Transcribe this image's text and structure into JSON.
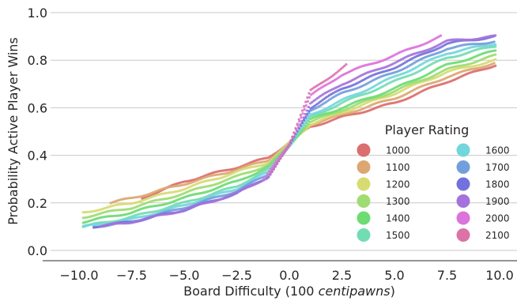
{
  "chart_data": {
    "type": "scatter",
    "xlabel_prefix": "Board Difficulty (100 ",
    "xlabel_italic": "centipawns",
    "xlabel_suffix": ")",
    "ylabel": "Probability Active Player Wins",
    "xlim": [
      -11,
      11
    ],
    "ylim": [
      -0.05,
      1.0
    ],
    "x_ticks": [
      -10.0,
      -7.5,
      -5.0,
      -2.5,
      0.0,
      2.5,
      5.0,
      7.5,
      10.0
    ],
    "x_tick_labels": [
      "−10.0",
      "−7.5",
      "−5.0",
      "−2.5",
      "0.0",
      "2.5",
      "5.0",
      "7.5",
      "10.0"
    ],
    "y_ticks": [
      0.0,
      0.2,
      0.4,
      0.6,
      0.8,
      1.0
    ],
    "y_tick_labels": [
      "0.0",
      "0.2",
      "0.4",
      "0.6",
      "0.8",
      "1.0"
    ],
    "grid": "horizontal",
    "legend": {
      "title": "Player Rating",
      "placement": "lower-right",
      "columns": 2
    },
    "series": [
      {
        "name": "1000",
        "color": "#db6e6e",
        "x_range": [
          -7.0,
          9.8
        ],
        "points": [
          [
            -7,
            0.22
          ],
          [
            -5,
            0.29
          ],
          [
            -2.5,
            0.35
          ],
          [
            -1,
            0.39
          ],
          [
            0,
            0.455
          ],
          [
            1,
            0.52
          ],
          [
            2.5,
            0.56
          ],
          [
            5,
            0.62
          ],
          [
            7.5,
            0.71
          ],
          [
            9.8,
            0.78
          ]
        ]
      },
      {
        "name": "1100",
        "color": "#dca771",
        "x_range": [
          -8.5,
          9.8
        ],
        "points": [
          [
            -8.5,
            0.2
          ],
          [
            -7.5,
            0.22
          ],
          [
            -5,
            0.28
          ],
          [
            -2.5,
            0.34
          ],
          [
            -1,
            0.38
          ],
          [
            0,
            0.45
          ],
          [
            1,
            0.53
          ],
          [
            2.5,
            0.57
          ],
          [
            5,
            0.64
          ],
          [
            7.5,
            0.73
          ],
          [
            9.8,
            0.79
          ]
        ]
      },
      {
        "name": "1200",
        "color": "#d6dc72",
        "x_range": [
          -9.8,
          9.8
        ],
        "points": [
          [
            -9.8,
            0.16
          ],
          [
            -7.5,
            0.2
          ],
          [
            -5,
            0.26
          ],
          [
            -2.5,
            0.33
          ],
          [
            -1,
            0.37
          ],
          [
            0,
            0.45
          ],
          [
            1,
            0.53
          ],
          [
            2.5,
            0.58
          ],
          [
            5,
            0.66
          ],
          [
            7.5,
            0.75
          ],
          [
            9.8,
            0.8
          ]
        ]
      },
      {
        "name": "1300",
        "color": "#9fdc72",
        "x_range": [
          -9.8,
          9.8
        ],
        "points": [
          [
            -9.8,
            0.14
          ],
          [
            -7.5,
            0.18
          ],
          [
            -5,
            0.24
          ],
          [
            -2.5,
            0.31
          ],
          [
            -1,
            0.36
          ],
          [
            0,
            0.445
          ],
          [
            1,
            0.54
          ],
          [
            2.5,
            0.59
          ],
          [
            5,
            0.67
          ],
          [
            7.5,
            0.76
          ],
          [
            9.8,
            0.82
          ]
        ]
      },
      {
        "name": "1400",
        "color": "#6ddc72",
        "x_range": [
          -9.8,
          9.8
        ],
        "points": [
          [
            -9.8,
            0.12
          ],
          [
            -7.5,
            0.16
          ],
          [
            -5,
            0.22
          ],
          [
            -2.5,
            0.29
          ],
          [
            -1,
            0.35
          ],
          [
            0,
            0.44
          ],
          [
            1,
            0.55
          ],
          [
            2.5,
            0.6
          ],
          [
            5,
            0.68
          ],
          [
            7.5,
            0.78
          ],
          [
            9.8,
            0.84
          ]
        ]
      },
      {
        "name": "1500",
        "color": "#72dcb3",
        "x_range": [
          -9.8,
          9.8
        ],
        "points": [
          [
            -9.8,
            0.1
          ],
          [
            -7.5,
            0.14
          ],
          [
            -5,
            0.2
          ],
          [
            -2.5,
            0.27
          ],
          [
            -1,
            0.34
          ],
          [
            0,
            0.44
          ],
          [
            1,
            0.56
          ],
          [
            2.5,
            0.62
          ],
          [
            5,
            0.71
          ],
          [
            7.5,
            0.81
          ],
          [
            9.8,
            0.86
          ]
        ]
      },
      {
        "name": "1600",
        "color": "#72d6dc",
        "x_range": [
          -9.8,
          9.8
        ],
        "points": [
          [
            -9.8,
            0.1
          ],
          [
            -7.5,
            0.13
          ],
          [
            -5,
            0.19
          ],
          [
            -2.5,
            0.26
          ],
          [
            -1,
            0.33
          ],
          [
            0,
            0.44
          ],
          [
            1,
            0.57
          ],
          [
            2.5,
            0.63
          ],
          [
            5,
            0.73
          ],
          [
            7.5,
            0.83
          ],
          [
            9.8,
            0.87
          ]
        ]
      },
      {
        "name": "1700",
        "color": "#729fdc",
        "x_range": [
          -9.3,
          9.8
        ],
        "points": [
          [
            -9.3,
            0.1
          ],
          [
            -7.5,
            0.12
          ],
          [
            -5,
            0.18
          ],
          [
            -2.5,
            0.25
          ],
          [
            -1,
            0.32
          ],
          [
            0,
            0.44
          ],
          [
            1,
            0.59
          ],
          [
            2.5,
            0.66
          ],
          [
            5,
            0.75
          ],
          [
            7.5,
            0.85
          ],
          [
            9.8,
            0.88
          ]
        ]
      },
      {
        "name": "1800",
        "color": "#7272dc",
        "x_range": [
          -9.3,
          9.8
        ],
        "points": [
          [
            -9.3,
            0.1
          ],
          [
            -7.5,
            0.12
          ],
          [
            -5,
            0.17
          ],
          [
            -2.5,
            0.24
          ],
          [
            -1,
            0.31
          ],
          [
            0,
            0.44
          ],
          [
            1,
            0.6
          ],
          [
            2.5,
            0.68
          ],
          [
            5,
            0.77
          ],
          [
            7.5,
            0.87
          ],
          [
            9.8,
            0.9
          ]
        ]
      },
      {
        "name": "1900",
        "color": "#a572dc",
        "x_range": [
          -9.0,
          9.8
        ],
        "points": [
          [
            -9,
            0.1
          ],
          [
            -7.5,
            0.12
          ],
          [
            -5,
            0.17
          ],
          [
            -2.5,
            0.24
          ],
          [
            -1,
            0.31
          ],
          [
            0,
            0.44
          ],
          [
            1,
            0.62
          ],
          [
            2.5,
            0.7
          ],
          [
            5,
            0.79
          ],
          [
            7.5,
            0.88
          ],
          [
            9.8,
            0.9
          ]
        ]
      },
      {
        "name": "2000",
        "color": "#dc72dc",
        "x_range": [
          -1.2,
          7.2
        ],
        "points": [
          [
            -1.2,
            0.3
          ],
          [
            0,
            0.45
          ],
          [
            1,
            0.65
          ],
          [
            2.5,
            0.74
          ],
          [
            5,
            0.82
          ],
          [
            7.2,
            0.9
          ]
        ]
      },
      {
        "name": "2100",
        "color": "#dc72a8",
        "x_range": [
          -0.9,
          2.7
        ],
        "points": [
          [
            -0.9,
            0.32
          ],
          [
            0,
            0.45
          ],
          [
            1,
            0.67
          ],
          [
            2.7,
            0.78
          ]
        ]
      }
    ]
  }
}
